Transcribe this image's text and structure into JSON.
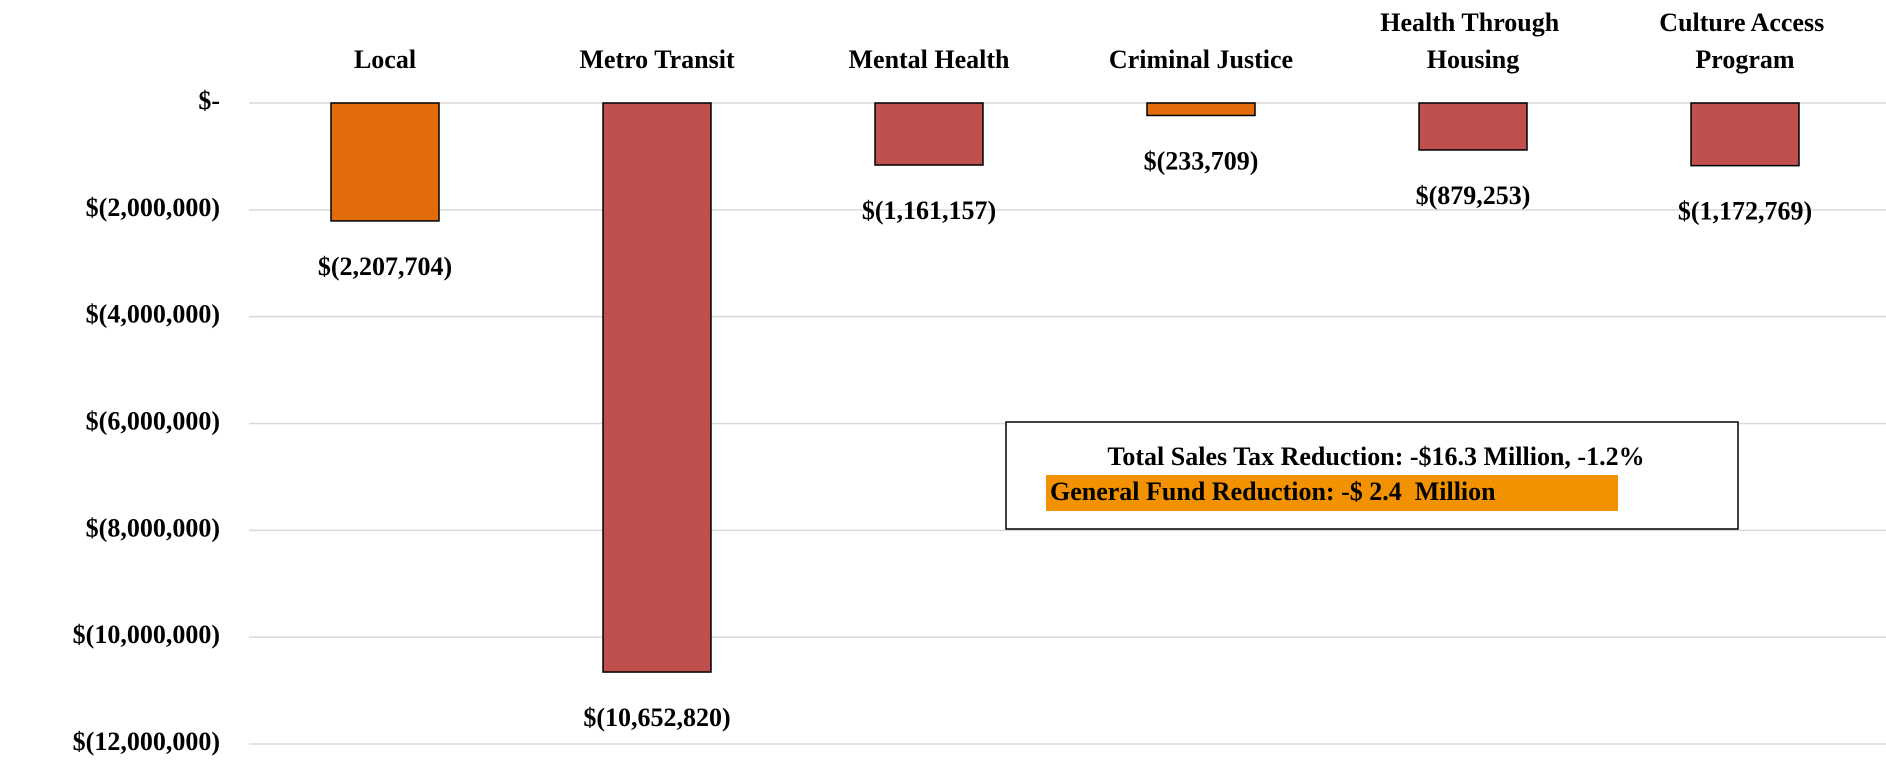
{
  "chart_data": {
    "type": "bar",
    "categories": [
      "Local",
      "Metro Transit",
      "Mental Health",
      "Criminal Justice",
      "Health Through Housing",
      "Culture Access Program"
    ],
    "values": [
      -2207704,
      -10652820,
      -1161157,
      -233709,
      -879253,
      -1172769
    ],
    "value_labels": [
      "$(2,207,704)",
      "$(10,652,820)",
      "$(1,161,157)",
      "$(233,709)",
      "$(879,253)",
      "$(1,172,769)"
    ],
    "colors": [
      "#e36c0a",
      "#c0504d",
      "#c0504d",
      "#e36c0a",
      "#c0504d",
      "#c0504d"
    ],
    "ylim": [
      -12000000,
      0
    ],
    "yticks": [
      {
        "value": 0,
        "label": "$-"
      },
      {
        "value": -2000000,
        "label": "$(2,000,000)"
      },
      {
        "value": -4000000,
        "label": "$(4,000,000)"
      },
      {
        "value": -6000000,
        "label": "$(6,000,000)"
      },
      {
        "value": -8000000,
        "label": "$(8,000,000)"
      },
      {
        "value": -10000000,
        "label": "$(10,000,000)"
      },
      {
        "value": -12000000,
        "label": "$(12,000,000)"
      }
    ],
    "grid": true,
    "annotations": [
      "Total Sales Tax Reduction: -$16.3 Million, -1.2%",
      "General Fund Reduction: -$ 2.4  Million"
    ]
  }
}
